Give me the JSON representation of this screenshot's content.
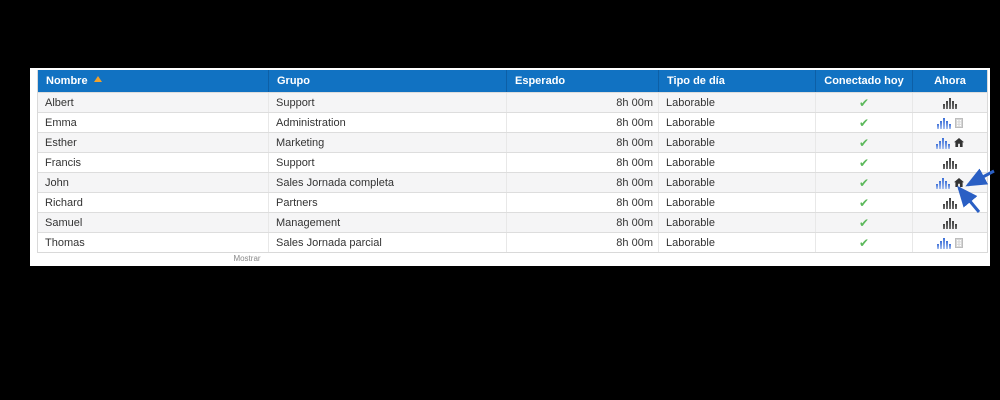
{
  "colors": {
    "page_bg": "#000000",
    "canvas_bg": "#ffffff",
    "header_bg": "#1172c2",
    "header_divider": "#0d5fa6",
    "header_text": "#ffffff",
    "row_stripe": "#f5f5f6",
    "row_border": "#dddddd",
    "cell_divider": "#e8e8e8",
    "table_border": "#d9d9d9",
    "text": "#333333",
    "muted_text": "#888888",
    "sort_arrow": "#f0a12c",
    "check_green": "#5cb85c",
    "bars_dark_top": "#404040",
    "bars_dark_bottom": "#6e6e6e",
    "bars_blue_top": "#3a6ed8",
    "bars_blue_bottom": "#aac1f0",
    "house_dark": "#333333",
    "building_fill": "#d6d6d6",
    "building_stroke": "#bdbdbd",
    "arrow_blue": "#2a5fc4"
  },
  "icons": {
    "check_glyph": "✔"
  },
  "table": {
    "columns": [
      {
        "key": "nombre",
        "label": "Nombre",
        "sorted": "asc",
        "align": "left"
      },
      {
        "key": "grupo",
        "label": "Grupo",
        "align": "left"
      },
      {
        "key": "esperado",
        "label": "Esperado",
        "align": "left"
      },
      {
        "key": "tipo_de_dia",
        "label": "Tipo de día",
        "align": "left"
      },
      {
        "key": "conectado_hoy",
        "label": "Conectado hoy",
        "align": "center"
      },
      {
        "key": "ahora",
        "label": "Ahora",
        "align": "center"
      }
    ],
    "rows": [
      {
        "nombre": "Albert",
        "grupo": "Support",
        "esperado": "8h 00m",
        "tipo_de_dia": "Laborable",
        "conectado_hoy": true,
        "ahora_icon": "bar-chart-dark",
        "extra_icon": null
      },
      {
        "nombre": "Emma",
        "grupo": "Administration",
        "esperado": "8h 00m",
        "tipo_de_dia": "Laborable",
        "conectado_hoy": true,
        "ahora_icon": "bar-chart-blue",
        "extra_icon": "office-building-gray"
      },
      {
        "nombre": "Esther",
        "grupo": "Marketing",
        "esperado": "8h 00m",
        "tipo_de_dia": "Laborable",
        "conectado_hoy": true,
        "ahora_icon": "bar-chart-blue",
        "extra_icon": "home-dark"
      },
      {
        "nombre": "Francis",
        "grupo": "Support",
        "esperado": "8h 00m",
        "tipo_de_dia": "Laborable",
        "conectado_hoy": true,
        "ahora_icon": "bar-chart-dark",
        "extra_icon": null
      },
      {
        "nombre": "John",
        "grupo": "Sales Jornada completa",
        "esperado": "8h 00m",
        "tipo_de_dia": "Laborable",
        "conectado_hoy": true,
        "ahora_icon": "bar-chart-blue",
        "extra_icon": "home-dark",
        "annotated": true
      },
      {
        "nombre": "Richard",
        "grupo": "Partners",
        "esperado": "8h 00m",
        "tipo_de_dia": "Laborable",
        "conectado_hoy": true,
        "ahora_icon": "bar-chart-dark",
        "extra_icon": null
      },
      {
        "nombre": "Samuel",
        "grupo": "Management",
        "esperado": "8h 00m",
        "tipo_de_dia": "Laborable",
        "conectado_hoy": true,
        "ahora_icon": "bar-chart-dark",
        "extra_icon": null
      },
      {
        "nombre": "Thomas",
        "grupo": "Sales Jornada parcial",
        "esperado": "8h 00m",
        "tipo_de_dia": "Laborable",
        "conectado_hoy": true,
        "ahora_icon": "bar-chart-blue",
        "extra_icon": "office-building-gray"
      }
    ]
  },
  "annotation": {
    "type": "pointer-arrows",
    "count": 2,
    "target_row": "John",
    "target_icon": "home-icon"
  },
  "footer": {
    "label": "Mostrar"
  }
}
